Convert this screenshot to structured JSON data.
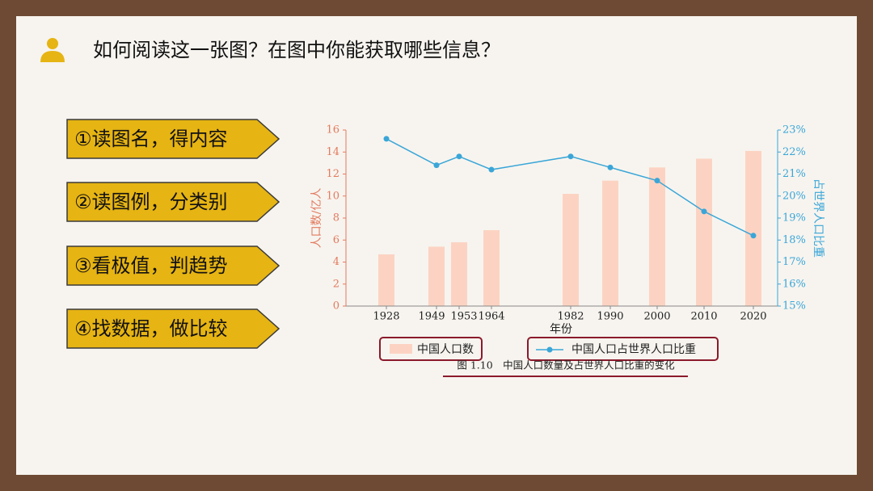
{
  "header": {
    "title": "如何阅读这一张图？在图中你能获取哪些信息？"
  },
  "steps": [
    "①读图名，得内容",
    "②读图例，分类别",
    "③看极值，判趋势",
    "④找数据，做比较"
  ],
  "chart_data": {
    "type": "bar-line",
    "caption": "图 1.10　中国人口数量及占世界人口比重的变化",
    "x_label": "年份",
    "y_label": "人口数/亿人",
    "y2_label": "占世界人口比重",
    "categories": [
      "1928",
      "1949",
      "1953",
      "1964",
      "1982",
      "1990",
      "2000",
      "2010",
      "2020"
    ],
    "series": [
      {
        "name": "中国人口数",
        "color": "#fcd3c2",
        "type": "bar",
        "values": [
          4.7,
          5.4,
          5.8,
          6.9,
          10.2,
          11.4,
          12.6,
          13.4,
          14.1
        ]
      },
      {
        "name": "中国人口占世界人口比重",
        "color": "#3aa6d8",
        "type": "line",
        "axis": "y2",
        "values": [
          22.6,
          21.4,
          21.8,
          21.2,
          21.8,
          21.3,
          20.7,
          19.3,
          18.2
        ]
      }
    ],
    "ylim": [
      0,
      16
    ],
    "yticks": [
      0,
      2,
      4,
      6,
      8,
      10,
      12,
      14,
      16
    ],
    "y2lim": [
      15,
      23
    ],
    "y2ticks": [
      {
        "value": 15,
        "label": "15%"
      },
      {
        "value": 16,
        "label": "16%"
      },
      {
        "value": 17,
        "label": "17%"
      },
      {
        "value": 18,
        "label": "18%"
      },
      {
        "value": 19,
        "label": "19%"
      },
      {
        "value": 20,
        "label": "20%"
      },
      {
        "value": 21,
        "label": "21%"
      },
      {
        "value": 22,
        "label": "22%"
      },
      {
        "value": 23,
        "label": "23%"
      }
    ],
    "y_color": "#e27a5f",
    "y2_color": "#3aa6d8"
  }
}
